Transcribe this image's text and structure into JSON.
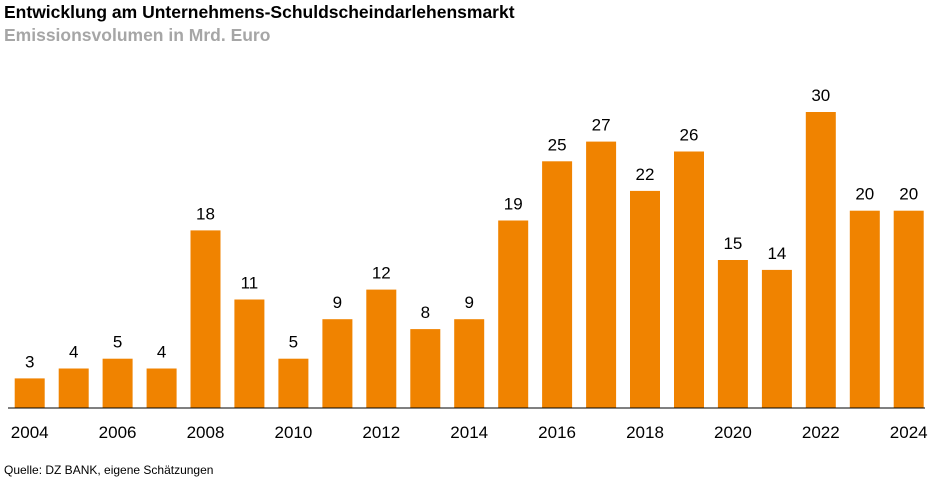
{
  "title": "Entwicklung am Unternehmens-Schuldscheindarlehensmarkt",
  "subtitle": "Emissionsvolumen in Mrd. Euro",
  "source": "Quelle: DZ BANK, eigene Schätzungen",
  "colors": {
    "bar": "#f08300",
    "axis": "#000000",
    "subtitle": "#a6a6a6"
  },
  "chart_data": {
    "type": "bar",
    "categories": [
      "2004",
      "2005",
      "2006",
      "2007",
      "2008",
      "2009",
      "2010",
      "2011",
      "2012",
      "2013",
      "2014",
      "2015",
      "2016",
      "2017",
      "2018",
      "2019",
      "2020",
      "2021",
      "2022",
      "2023",
      "2024"
    ],
    "tick_labels": [
      "2004",
      "2006",
      "2008",
      "2010",
      "2012",
      "2014",
      "2016",
      "2018",
      "2020",
      "2022",
      "2024"
    ],
    "values": [
      3,
      4,
      5,
      4,
      18,
      11,
      5,
      9,
      12,
      8,
      9,
      19,
      25,
      27,
      22,
      26,
      15,
      14,
      30,
      20,
      20
    ],
    "title": "Entwicklung am Unternehmens-Schuldscheindarlehensmarkt",
    "subtitle": "Emissionsvolumen in Mrd. Euro",
    "ylim": [
      0,
      30
    ],
    "grid": false,
    "legend": "none",
    "data_labels": true
  }
}
